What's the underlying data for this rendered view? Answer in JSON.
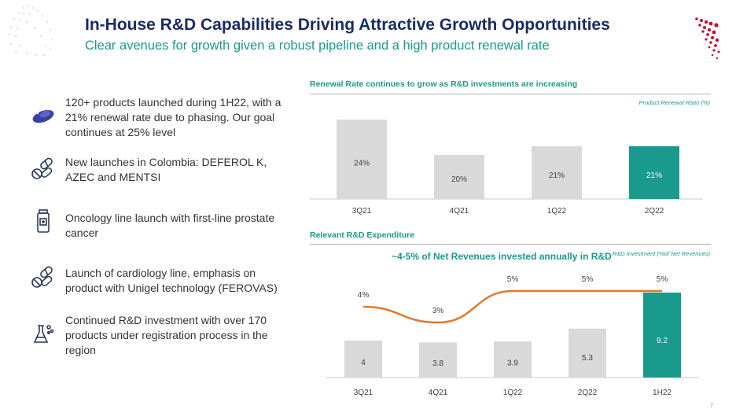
{
  "header": {
    "title": "In-House R&D Capabilities Driving Attractive Growth Opportunities",
    "subtitle": "Clear avenues for growth given a robust pipeline and a high product renewal rate"
  },
  "bullets": [
    {
      "icon": "pill-capsule-icon",
      "text": "120+ products launched during 1H22, with a 21% renewal rate due to phasing. Our goal continues at 25% level"
    },
    {
      "icon": "pills-icon",
      "text": "New launches in Colombia: DEFEROL K, AZEC and MENTSI"
    },
    {
      "icon": "medicine-bottle-icon",
      "text": "Oncology line launch with first-line prostate cancer"
    },
    {
      "icon": "pills-icon",
      "text": "Launch of cardiology line, emphasis on product with Unigel technology (FEROVAS)"
    },
    {
      "icon": "lab-flask-icon",
      "text": "Continued R&D investment with over 170 products under registration process in the region"
    }
  ],
  "renewal": {
    "section_title": "Renewal Rate continues to grow as R&D investments are increasing",
    "note": "Product Renewal Ratio (%)"
  },
  "expenditure": {
    "section_title": "Relevant R&D Expenditure",
    "note": "R&D Investment (%of Net Revenues)",
    "callout": "~4-5% of Net Revenues invested annually in R&D"
  },
  "colors": {
    "navy": "#1b2b63",
    "teal": "#1a9a8c",
    "bar_gray": "#d9d9d9",
    "line_orange": "#e07a2e",
    "logo_red": "#c8102e"
  },
  "chart_data": [
    {
      "type": "bar",
      "categories": [
        "3Q21",
        "4Q21",
        "1Q22",
        "2Q22"
      ],
      "values": [
        24,
        20,
        21,
        21
      ],
      "labels": [
        "24%",
        "20%",
        "21%",
        "21%"
      ],
      "highlight_index": 3,
      "ylim": [
        15,
        25
      ]
    },
    {
      "type": "bar",
      "categories": [
        "3Q21",
        "4Q21",
        "1Q22",
        "2Q22",
        "1H22"
      ],
      "values": [
        4,
        3.8,
        3.9,
        5.3,
        9.2
      ],
      "labels": [
        "4",
        "3.8",
        "3.9",
        "5.3",
        "9.2"
      ],
      "highlight_index": 4,
      "line": {
        "values": [
          4,
          3,
          5,
          5,
          5
        ],
        "labels": [
          "4%",
          "3%",
          "5%",
          "5%",
          "5%"
        ]
      }
    }
  ],
  "page_number": "7"
}
